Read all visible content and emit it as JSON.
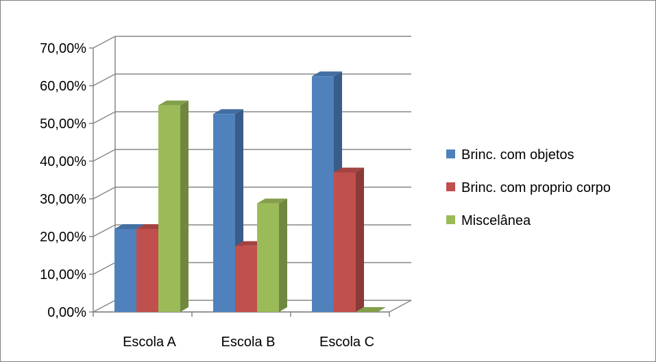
{
  "chart_data": {
    "type": "bar",
    "title": "",
    "xlabel": "",
    "ylabel": "",
    "categories": [
      "Escola A",
      "Escola B",
      "Escola C"
    ],
    "series": [
      {
        "name": "Brinc. com objetos",
        "values": [
          0.22,
          0.525,
          0.625
        ],
        "color": "#4f81bd"
      },
      {
        "name": "Brinc. com proprio corpo",
        "values": [
          0.22,
          0.175,
          0.37
        ],
        "color": "#c0504d"
      },
      {
        "name": "Miscelânea",
        "values": [
          0.548,
          0.288,
          0.0
        ],
        "color": "#9bbb59"
      }
    ],
    "ylim": [
      0,
      0.7
    ],
    "y_ticks": [
      "0,00%",
      "10,00%",
      "20,00%",
      "30,00%",
      "40,00%",
      "50,00%",
      "60,00%",
      "70,00%"
    ],
    "grid": true,
    "style": "3d-clustered-column",
    "legend_position": "right"
  }
}
